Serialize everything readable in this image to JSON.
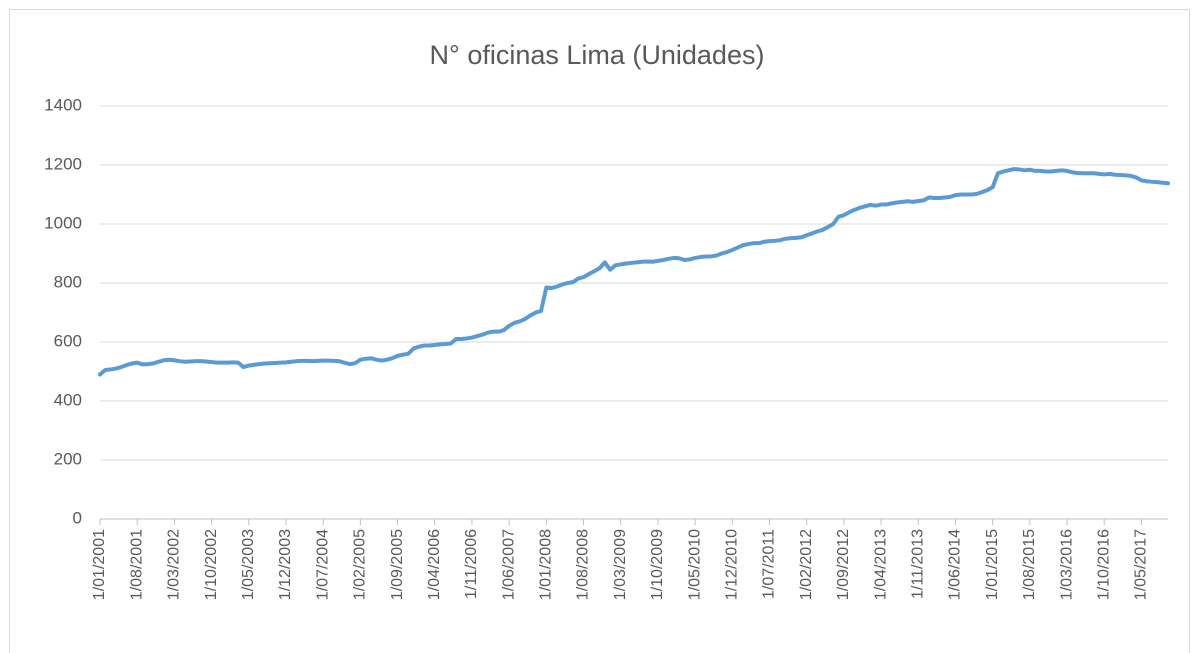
{
  "chart_data": {
    "type": "line",
    "title": "N° oficinas Lima (Unidades)",
    "categories": [
      "1/01/2001",
      null,
      null,
      null,
      null,
      null,
      null,
      "1/08/2001",
      null,
      null,
      null,
      null,
      null,
      null,
      "1/03/2002",
      null,
      null,
      null,
      null,
      null,
      null,
      "1/10/2002",
      null,
      null,
      null,
      null,
      null,
      null,
      "1/05/2003",
      null,
      null,
      null,
      null,
      null,
      null,
      "1/12/2003",
      null,
      null,
      null,
      null,
      null,
      null,
      "1/07/2004",
      null,
      null,
      null,
      null,
      null,
      null,
      "1/02/2005",
      null,
      null,
      null,
      null,
      null,
      null,
      "1/09/2005",
      null,
      null,
      null,
      null,
      null,
      null,
      "1/04/2006",
      null,
      null,
      null,
      null,
      null,
      null,
      "1/11/2006",
      null,
      null,
      null,
      null,
      null,
      null,
      "1/06/2007",
      null,
      null,
      null,
      null,
      null,
      null,
      "1/01/2008",
      null,
      null,
      null,
      null,
      null,
      null,
      "1/08/2008",
      null,
      null,
      null,
      null,
      null,
      null,
      "1/03/2009",
      null,
      null,
      null,
      null,
      null,
      null,
      "1/10/2009",
      null,
      null,
      null,
      null,
      null,
      null,
      "1/05/2010",
      null,
      null,
      null,
      null,
      null,
      null,
      "1/12/2010",
      null,
      null,
      null,
      null,
      null,
      null,
      "1/07/2011",
      null,
      null,
      null,
      null,
      null,
      null,
      "1/02/2012",
      null,
      null,
      null,
      null,
      null,
      null,
      "1/09/2012",
      null,
      null,
      null,
      null,
      null,
      null,
      "1/04/2013",
      null,
      null,
      null,
      null,
      null,
      null,
      "1/11/2013",
      null,
      null,
      null,
      null,
      null,
      null,
      "1/06/2014",
      null,
      null,
      null,
      null,
      null,
      null,
      "1/01/2015",
      null,
      null,
      null,
      null,
      null,
      null,
      "1/08/2015",
      null,
      null,
      null,
      null,
      null,
      null,
      "1/03/2016",
      null,
      null,
      null,
      null,
      null,
      null,
      "1/10/2016",
      null,
      null,
      null,
      null,
      null,
      null,
      "1/05/2017",
      null,
      null,
      null,
      null,
      null
    ],
    "values": [
      490,
      505,
      507,
      510,
      515,
      522,
      527,
      530,
      524,
      525,
      527,
      533,
      538,
      540,
      538,
      535,
      533,
      534,
      535,
      535,
      534,
      532,
      530,
      530,
      530,
      531,
      530,
      515,
      520,
      523,
      525,
      527,
      528,
      529,
      530,
      531,
      533,
      535,
      536,
      536,
      535,
      536,
      537,
      537,
      536,
      535,
      530,
      525,
      528,
      540,
      543,
      545,
      540,
      537,
      540,
      545,
      553,
      557,
      560,
      578,
      584,
      588,
      588,
      590,
      592,
      593,
      595,
      610,
      610,
      612,
      615,
      620,
      625,
      632,
      635,
      635,
      640,
      655,
      665,
      670,
      678,
      690,
      700,
      705,
      785,
      783,
      788,
      795,
      800,
      803,
      815,
      820,
      830,
      840,
      850,
      870,
      845,
      860,
      863,
      866,
      868,
      870,
      872,
      873,
      872,
      875,
      878,
      882,
      885,
      884,
      878,
      880,
      885,
      888,
      890,
      890,
      893,
      900,
      905,
      912,
      920,
      928,
      932,
      935,
      935,
      940,
      942,
      943,
      945,
      950,
      952,
      953,
      955,
      962,
      968,
      975,
      980,
      990,
      1000,
      1025,
      1030,
      1040,
      1048,
      1055,
      1060,
      1065,
      1062,
      1066,
      1066,
      1070,
      1073,
      1075,
      1077,
      1075,
      1078,
      1080,
      1090,
      1088,
      1088,
      1090,
      1092,
      1098,
      1100,
      1100,
      1100,
      1102,
      1108,
      1115,
      1125,
      1172,
      1178,
      1182,
      1186,
      1185,
      1182,
      1184,
      1180,
      1180,
      1178,
      1178,
      1180,
      1182,
      1180,
      1175,
      1173,
      1172,
      1172,
      1172,
      1170,
      1168,
      1170,
      1167,
      1166,
      1165,
      1163,
      1158,
      1148,
      1145,
      1143,
      1142,
      1140,
      1138
    ],
    "color": "#5b9bd5",
    "ylim": [
      0,
      1400
    ],
    "yticks": [
      0,
      200,
      400,
      600,
      800,
      1000,
      1200,
      1400
    ],
    "grid": true
  }
}
